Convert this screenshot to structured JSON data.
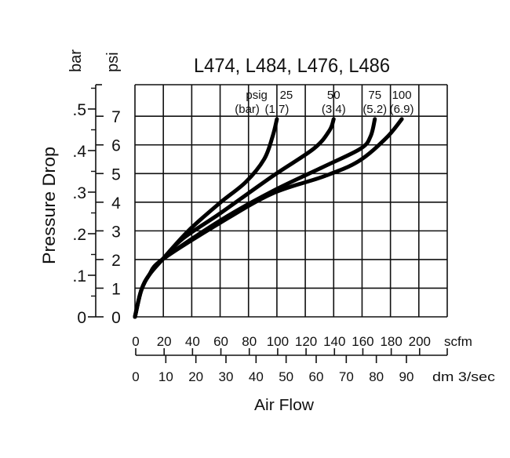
{
  "chart_data": {
    "type": "line",
    "title": "L474, L484, L476, L486",
    "xlabel": "Air Flow",
    "ylabel": "Pressure Drop",
    "x_unit_primary": "scfm",
    "x_unit_secondary": "dm 3/sec",
    "y_unit_primary": "psi",
    "y_unit_secondary": "bar",
    "xlim": [
      0,
      220
    ],
    "ylim": [
      0,
      8.1
    ],
    "grid": true,
    "x_ticks_scfm": [
      "0",
      "20",
      "40",
      "60",
      "80",
      "100",
      "120",
      "140",
      "160",
      "180",
      "200"
    ],
    "x_ticks_dm3sec": [
      "0",
      "10",
      "20",
      "30",
      "40",
      "50",
      "60",
      "70",
      "80",
      "90"
    ],
    "y_ticks_psi": [
      "0",
      "1",
      "2",
      "3",
      "4",
      "5",
      "6",
      "7"
    ],
    "y_ticks_bar": [
      "0",
      ".1",
      ".2",
      ".3",
      ".4",
      ".5"
    ],
    "series_header": {
      "line1": "psig",
      "line2": "(bar)"
    },
    "series": [
      {
        "label": "25",
        "sub": "(1.7)",
        "points": [
          [
            0,
            0
          ],
          [
            4.4,
            0.92
          ],
          [
            10,
            1.46
          ],
          [
            19.3,
            2.0
          ],
          [
            37.6,
            3.0
          ],
          [
            59.7,
            3.97
          ],
          [
            78,
            4.7
          ],
          [
            91,
            5.5
          ],
          [
            97,
            6.3
          ],
          [
            100,
            6.9
          ]
        ]
      },
      {
        "label": "50",
        "sub": "(3.4)",
        "points": [
          [
            0,
            0
          ],
          [
            4.4,
            0.92
          ],
          [
            10,
            1.46
          ],
          [
            19.3,
            2.0
          ],
          [
            33.7,
            2.73
          ],
          [
            59.7,
            3.6
          ],
          [
            96.7,
            4.9
          ],
          [
            126,
            5.87
          ],
          [
            137,
            6.5
          ],
          [
            140,
            6.9
          ]
        ]
      },
      {
        "label": "75",
        "sub": "(5.2)",
        "points": [
          [
            0,
            0
          ],
          [
            4.4,
            0.92
          ],
          [
            10,
            1.46
          ],
          [
            19.3,
            2.0
          ],
          [
            59.7,
            3.35
          ],
          [
            96.7,
            4.38
          ],
          [
            133,
            5.24
          ],
          [
            159,
            5.87
          ],
          [
            166,
            6.3
          ],
          [
            169,
            6.9
          ]
        ]
      },
      {
        "label": "100",
        "sub": "(6.9)",
        "points": [
          [
            0,
            0
          ],
          [
            4.4,
            0.92
          ],
          [
            10,
            1.46
          ],
          [
            19.3,
            2.0
          ],
          [
            59.7,
            3.27
          ],
          [
            96.7,
            4.3
          ],
          [
            133,
            4.9
          ],
          [
            157.5,
            5.43
          ],
          [
            177,
            6.24
          ],
          [
            188,
            6.9
          ]
        ]
      }
    ],
    "line_color": "#000000"
  }
}
